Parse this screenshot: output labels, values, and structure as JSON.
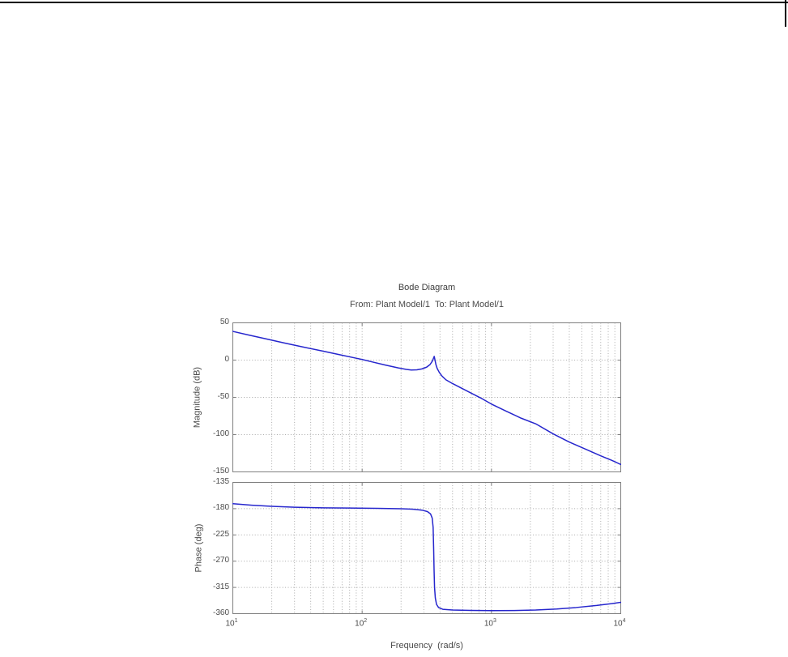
{
  "colors": {
    "curve": "#2626cd",
    "grid": "#a8a8a8",
    "frame": "#7f7f7f",
    "text": "#4a4a4a",
    "rule": "#000000"
  },
  "chart_data": {
    "type": "line",
    "title": "Bode Diagram",
    "subtitle": "From: Plant Model/1  To: Plant Model/1",
    "xlabel": "Frequency  (rad/s)",
    "xscale": "log",
    "xlim": [
      10,
      10000
    ],
    "x_major_ticks": [
      10,
      100,
      1000,
      10000
    ],
    "x_tick_labels": [
      {
        "base": "10",
        "exp": "1"
      },
      {
        "base": "10",
        "exp": "2"
      },
      {
        "base": "10",
        "exp": "3"
      },
      {
        "base": "10",
        "exp": "4"
      }
    ],
    "grid": true,
    "minor_grid": true,
    "legend": null,
    "subplots": [
      {
        "name": "magnitude",
        "ylabel": "Magnitude (dB)",
        "ylim": [
          -150,
          50
        ],
        "yticks": [
          50,
          0,
          -50,
          -100,
          -150
        ],
        "ytick_labels": [
          "50",
          "0",
          "-50",
          "-100",
          "-150"
        ],
        "series": [
          {
            "name": "magnitude_response",
            "points": [
              [
                10,
                38.5
              ],
              [
                13,
                34
              ],
              [
                18,
                28.5
              ],
              [
                25,
                23
              ],
              [
                35,
                17.5
              ],
              [
                50,
                12
              ],
              [
                70,
                6.5
              ],
              [
                90,
                2.5
              ],
              [
                100,
                0.8
              ],
              [
                120,
                -2.5
              ],
              [
                150,
                -6.5
              ],
              [
                190,
                -10.5
              ],
              [
                220,
                -12.5
              ],
              [
                240,
                -13.3
              ],
              [
                265,
                -13
              ],
              [
                290,
                -11.8
              ],
              [
                315,
                -9.5
              ],
              [
                335,
                -6
              ],
              [
                350,
                -1
              ],
              [
                357,
                3
              ],
              [
                361,
                5
              ],
              [
                366,
                0
              ],
              [
                372,
                -6
              ],
              [
                380,
                -11
              ],
              [
                395,
                -16.5
              ],
              [
                415,
                -21.5
              ],
              [
                445,
                -26.5
              ],
              [
                500,
                -31.5
              ],
              [
                600,
                -38.5
              ],
              [
                700,
                -44.5
              ],
              [
                850,
                -52
              ],
              [
                1000,
                -59
              ],
              [
                1300,
                -68.5
              ],
              [
                1700,
                -78
              ],
              [
                2200,
                -85.5
              ],
              [
                3000,
                -99
              ],
              [
                4000,
                -110
              ],
              [
                5500,
                -120.5
              ],
              [
                7000,
                -128.5
              ],
              [
                8500,
                -134.5
              ],
              [
                10000,
                -140
              ]
            ]
          }
        ]
      },
      {
        "name": "phase",
        "ylabel": "Phase (deg)",
        "ylim": [
          -360,
          -135
        ],
        "yticks": [
          -135,
          -180,
          -225,
          -270,
          -315,
          -360
        ],
        "ytick_labels": [
          "-135",
          "-180",
          "-225",
          "-270",
          "-315",
          "-360"
        ],
        "series": [
          {
            "name": "phase_response",
            "points": [
              [
                10,
                -171.5
              ],
              [
                14,
                -174
              ],
              [
                20,
                -176
              ],
              [
                30,
                -177.5
              ],
              [
                50,
                -178.5
              ],
              [
                80,
                -179
              ],
              [
                130,
                -179.5
              ],
              [
                200,
                -180.2
              ],
              [
                250,
                -181
              ],
              [
                290,
                -182.5
              ],
              [
                320,
                -185
              ],
              [
                338,
                -189
              ],
              [
                348,
                -196
              ],
              [
                354,
                -212
              ],
              [
                357,
                -245
              ],
              [
                360,
                -285
              ],
              [
                363,
                -315
              ],
              [
                368,
                -333
              ],
              [
                376,
                -344
              ],
              [
                390,
                -349.5
              ],
              [
                420,
                -352.5
              ],
              [
                500,
                -353.8
              ],
              [
                700,
                -354.5
              ],
              [
                1000,
                -354.8
              ],
              [
                1500,
                -354.6
              ],
              [
                2200,
                -353.8
              ],
              [
                3200,
                -352
              ],
              [
                4500,
                -349.5
              ],
              [
                6500,
                -346
              ],
              [
                8500,
                -342.8
              ],
              [
                10000,
                -340.5
              ]
            ]
          }
        ]
      }
    ]
  }
}
